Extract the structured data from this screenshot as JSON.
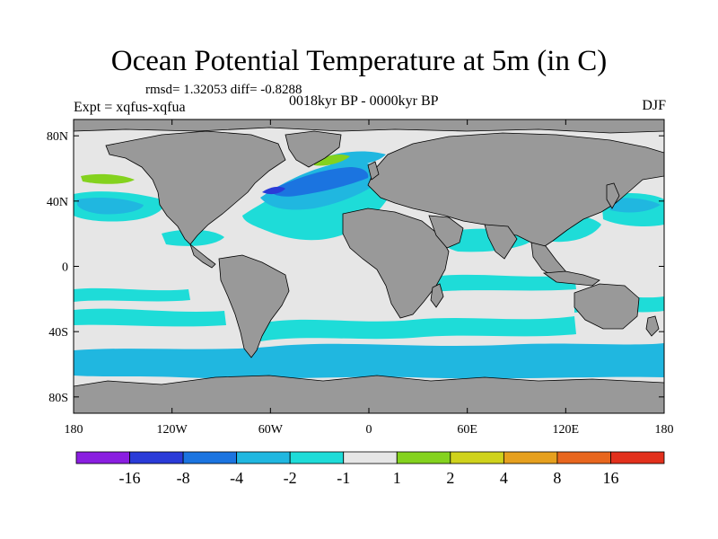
{
  "title": "Ocean Potential Temperature at 5m (in C)",
  "stats": "rmsd= 1.32053 diff= -0.8288",
  "experiment": "Expt = xqfus-xqfua",
  "period": "0018kyr BP - 0000kyr BP",
  "season": "DJF",
  "axes": {
    "lat_labels": [
      "80N",
      "40N",
      "0",
      "40S",
      "80S"
    ],
    "lat_values": [
      80,
      40,
      0,
      -40,
      -80
    ],
    "lon_labels": [
      "180",
      "120W",
      "60W",
      "0",
      "60E",
      "120E",
      "180"
    ],
    "lon_values": [
      -180,
      -120,
      -60,
      0,
      60,
      120,
      180
    ]
  },
  "colorbar": {
    "labels": [
      "-16",
      "-8",
      "-4",
      "-2",
      "-1",
      "1",
      "2",
      "4",
      "8",
      "16"
    ],
    "colors": [
      "#8a1ee0",
      "#2a3bd8",
      "#1b74e0",
      "#20b7e0",
      "#1edcd8",
      "#e6e6e6",
      "#84d21e",
      "#cfd21c",
      "#e6a01e",
      "#e8661e",
      "#e2301c"
    ]
  },
  "colors": {
    "land": "#999999",
    "ocean_neutral": "#e6e6e6",
    "cool": "#1edcd8",
    "cooler": "#20b7e0",
    "cold": "#1b74e0",
    "coldest": "#2a3bd8",
    "warm": "#84d21e"
  }
}
